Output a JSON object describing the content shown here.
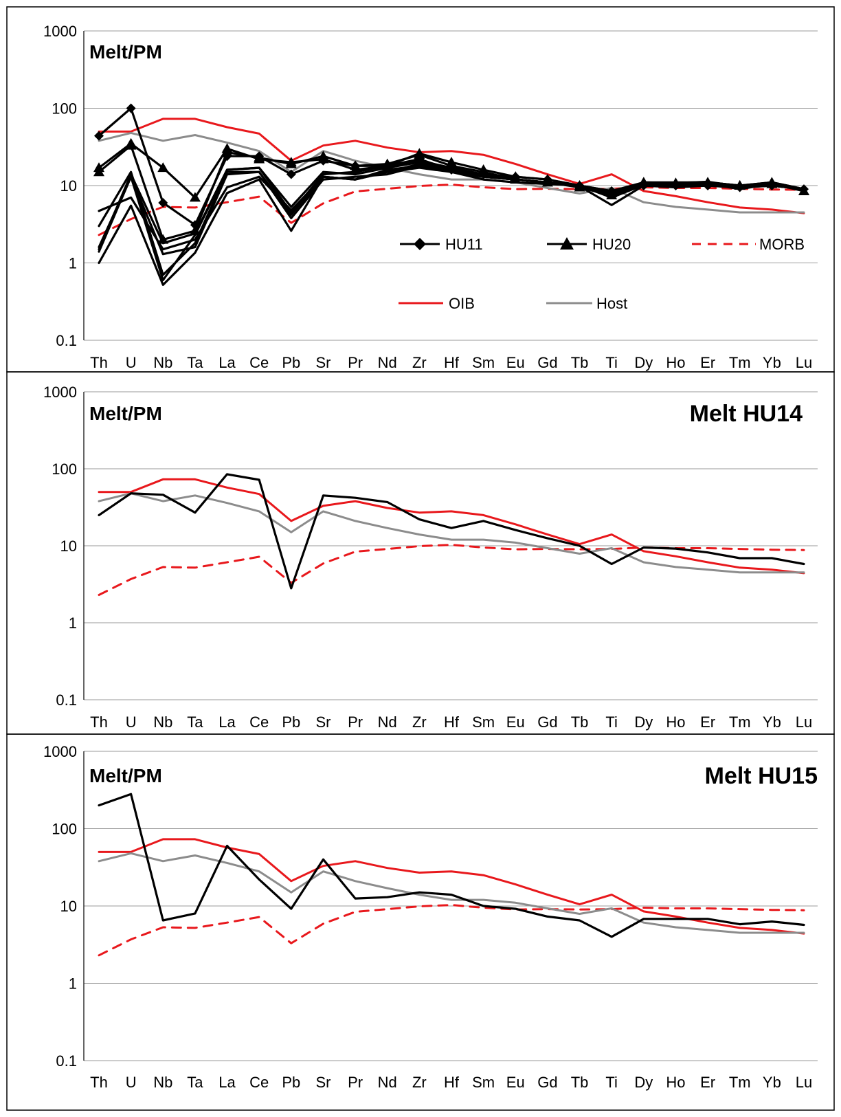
{
  "chart_data": [
    {
      "type": "line",
      "scale": "log",
      "ylabel": "Melt/PM",
      "title": "",
      "ylim": [
        0.1,
        1000
      ],
      "yticks": [
        "0.1",
        "1",
        "10",
        "100",
        "1000"
      ],
      "categories": [
        "Th",
        "U",
        "Nb",
        "Ta",
        "La",
        "Ce",
        "Pb",
        "Sr",
        "Pr",
        "Nd",
        "Zr",
        "Hf",
        "Sm",
        "Eu",
        "Gd",
        "Tb",
        "Ti",
        "Dy",
        "Ho",
        "Er",
        "Tm",
        "Yb",
        "Lu"
      ],
      "legend": [
        {
          "name": "HU11",
          "style": "black-diamond"
        },
        {
          "name": "HU20",
          "style": "black-triangle"
        },
        {
          "name": "MORB",
          "style": "red-dashed"
        },
        {
          "name": "OIB",
          "style": "red"
        },
        {
          "name": "Host",
          "style": "grey"
        }
      ],
      "series": [
        {
          "name": "OIB",
          "color": "#e8181c",
          "dash": false,
          "marker": "none",
          "values": [
            50,
            50,
            73,
            73,
            57,
            47,
            21,
            33,
            38,
            31,
            27,
            28,
            25,
            19,
            14,
            10.5,
            14,
            8.5,
            7.3,
            6.1,
            5.2,
            4.9,
            4.4
          ]
        },
        {
          "name": "MORB",
          "color": "#e8181c",
          "dash": true,
          "marker": "none",
          "values": [
            2.3,
            3.7,
            5.3,
            5.2,
            6.1,
            7.2,
            3.3,
            5.9,
            8.4,
            9.1,
            9.9,
            10.3,
            9.5,
            9.0,
            9.1,
            9.0,
            9.1,
            9.5,
            9.3,
            9.3,
            9.1,
            8.9,
            8.8
          ]
        },
        {
          "name": "Host",
          "color": "#8c8c8c",
          "dash": false,
          "marker": "none",
          "values": [
            38,
            48,
            38,
            45,
            36,
            28,
            15,
            28,
            21,
            17,
            14,
            12,
            12,
            11,
            9.3,
            7.9,
            9.3,
            6.1,
            5.3,
            4.9,
            4.5,
            4.5,
            4.5
          ]
        },
        {
          "name": "HU11-1",
          "color": "#000000",
          "dash": false,
          "marker": "diamond",
          "values": [
            44,
            100,
            6.0,
            3.1,
            24,
            24,
            14,
            21,
            18,
            18,
            22,
            16,
            14,
            13,
            12,
            10,
            8.5,
            10,
            10,
            10,
            9.5,
            10,
            9
          ]
        },
        {
          "name": "HU11-2",
          "color": "#000000",
          "dash": false,
          "marker": "none",
          "values": [
            4.7,
            7.0,
            1.5,
            2.0,
            9.5,
            13,
            4.8,
            13,
            12,
            15,
            17,
            15,
            13,
            12,
            11,
            10,
            7.5,
            10,
            9.5,
            10,
            9.5,
            10,
            9
          ]
        },
        {
          "name": "HU11-3",
          "color": "#000000",
          "dash": false,
          "marker": "none",
          "values": [
            1.4,
            13,
            1.3,
            1.6,
            14,
            15,
            3.8,
            12,
            13,
            14,
            18,
            15,
            13,
            12,
            11,
            10,
            7.7,
            10,
            9.8,
            10,
            9.4,
            10,
            9
          ]
        },
        {
          "name": "HU11-4",
          "color": "#000000",
          "dash": false,
          "marker": "none",
          "values": [
            3.0,
            15,
            0.7,
            1.8,
            15,
            15,
            4.2,
            13,
            12,
            16,
            18,
            15,
            12,
            11,
            10.5,
            10,
            7.0,
            10.2,
            10,
            10.2,
            9.6,
            10,
            9
          ]
        },
        {
          "name": "HU11-5",
          "color": "#000000",
          "dash": false,
          "marker": "none",
          "values": [
            1.0,
            5.5,
            0.52,
            1.35,
            8,
            12,
            2.6,
            13,
            12,
            15,
            19,
            16,
            13,
            12,
            11,
            9.8,
            5.6,
            10,
            10,
            10.5,
            9,
            10.5,
            9
          ]
        },
        {
          "name": "HU20-1",
          "color": "#000000",
          "dash": false,
          "marker": "triangle",
          "values": [
            17,
            35,
            17,
            7.0,
            30,
            22,
            20,
            22,
            16,
            18,
            26,
            20,
            16,
            13,
            12,
            10,
            8,
            11,
            10.5,
            11,
            10,
            10.5,
            8.5
          ]
        },
        {
          "name": "HU20-2",
          "color": "#000000",
          "dash": false,
          "marker": "triangle",
          "values": [
            15,
            33,
            2.0,
            2.6,
            27,
            23,
            19,
            24,
            18,
            19,
            25,
            18,
            15,
            12,
            11,
            9.5,
            7.5,
            11,
            10.8,
            11,
            10,
            11,
            8.5
          ]
        },
        {
          "name": "HU20-3",
          "color": "#000000",
          "dash": false,
          "marker": "none",
          "values": [
            1.5,
            14,
            1.8,
            2.4,
            16,
            17,
            5.3,
            15,
            14,
            17,
            20,
            16,
            13,
            12,
            11,
            10,
            8.5,
            11,
            11,
            11,
            10,
            11,
            9
          ]
        },
        {
          "name": "HU20-4",
          "color": "#000000",
          "dash": false,
          "marker": "none",
          "values": [
            1.6,
            13,
            0.6,
            2.3,
            16,
            17,
            4.5,
            14,
            15,
            18,
            21,
            17,
            14,
            12,
            11,
            10,
            8,
            10.6,
            10.8,
            11.2,
            9.8,
            11,
            9
          ]
        }
      ]
    },
    {
      "type": "line",
      "scale": "log",
      "ylabel": "Melt/PM",
      "title": "Melt HU14",
      "ylim": [
        0.1,
        1000
      ],
      "yticks": [
        "0.1",
        "1",
        "10",
        "100",
        "1000"
      ],
      "categories": [
        "Th",
        "U",
        "Nb",
        "Ta",
        "La",
        "Ce",
        "Pb",
        "Sr",
        "Pr",
        "Nd",
        "Zr",
        "Hf",
        "Sm",
        "Eu",
        "Gd",
        "Tb",
        "Ti",
        "Dy",
        "Ho",
        "Er",
        "Tm",
        "Yb",
        "Lu"
      ],
      "series": [
        {
          "name": "OIB",
          "color": "#e8181c",
          "dash": false,
          "marker": "none",
          "values": [
            50,
            50,
            73,
            73,
            57,
            47,
            21,
            33,
            38,
            31,
            27,
            28,
            25,
            19,
            14,
            10.5,
            14,
            8.5,
            7.3,
            6.1,
            5.2,
            4.9,
            4.4
          ]
        },
        {
          "name": "MORB",
          "color": "#e8181c",
          "dash": true,
          "marker": "none",
          "values": [
            2.3,
            3.7,
            5.3,
            5.2,
            6.1,
            7.2,
            3.3,
            5.9,
            8.4,
            9.1,
            9.9,
            10.3,
            9.5,
            9.0,
            9.1,
            9.0,
            9.1,
            9.5,
            9.3,
            9.3,
            9.1,
            8.9,
            8.8
          ]
        },
        {
          "name": "Host",
          "color": "#8c8c8c",
          "dash": false,
          "marker": "none",
          "values": [
            38,
            48,
            38,
            45,
            36,
            28,
            15,
            28,
            21,
            17,
            14,
            12,
            12,
            11,
            9.3,
            7.9,
            9.3,
            6.1,
            5.3,
            4.9,
            4.5,
            4.5,
            4.5
          ]
        },
        {
          "name": "HU14",
          "color": "#000000",
          "dash": false,
          "marker": "none",
          "values": [
            25,
            48,
            46,
            27,
            85,
            72,
            2.8,
            45,
            42,
            37,
            22,
            17,
            21,
            16,
            12.5,
            10,
            5.8,
            9.5,
            9.2,
            8.2,
            6.9,
            6.9,
            5.8
          ]
        }
      ]
    },
    {
      "type": "line",
      "scale": "log",
      "ylabel": "Melt/PM",
      "title": "Melt HU15",
      "ylim": [
        0.1,
        1000
      ],
      "yticks": [
        "0.1",
        "1",
        "10",
        "100",
        "1000"
      ],
      "categories": [
        "Th",
        "U",
        "Nb",
        "Ta",
        "La",
        "Ce",
        "Pb",
        "Sr",
        "Pr",
        "Nd",
        "Zr",
        "Hf",
        "Sm",
        "Eu",
        "Gd",
        "Tb",
        "Ti",
        "Dy",
        "Ho",
        "Er",
        "Tm",
        "Yb",
        "Lu"
      ],
      "series": [
        {
          "name": "OIB",
          "color": "#e8181c",
          "dash": false,
          "marker": "none",
          "values": [
            50,
            50,
            73,
            73,
            57,
            47,
            21,
            33,
            38,
            31,
            27,
            28,
            25,
            19,
            14,
            10.5,
            14,
            8.5,
            7.3,
            6.1,
            5.2,
            4.9,
            4.4
          ]
        },
        {
          "name": "MORB",
          "color": "#e8181c",
          "dash": true,
          "marker": "none",
          "values": [
            2.3,
            3.7,
            5.3,
            5.2,
            6.1,
            7.2,
            3.3,
            5.9,
            8.4,
            9.1,
            9.9,
            10.3,
            9.5,
            9.0,
            9.1,
            9.0,
            9.1,
            9.5,
            9.3,
            9.3,
            9.1,
            8.9,
            8.8
          ]
        },
        {
          "name": "Host",
          "color": "#8c8c8c",
          "dash": false,
          "marker": "none",
          "values": [
            38,
            48,
            38,
            45,
            36,
            28,
            15,
            28,
            21,
            17,
            14,
            12,
            12,
            11,
            9.3,
            7.9,
            9.3,
            6.1,
            5.3,
            4.9,
            4.5,
            4.5,
            4.5
          ]
        },
        {
          "name": "HU15",
          "color": "#000000",
          "dash": false,
          "marker": "none",
          "values": [
            200,
            280,
            6.5,
            8,
            60,
            22,
            9.2,
            40,
            12.5,
            13,
            15,
            14,
            10,
            9.2,
            7.3,
            6.5,
            4,
            6.8,
            6.8,
            6.8,
            5.8,
            6.3,
            5.7
          ]
        }
      ]
    }
  ]
}
